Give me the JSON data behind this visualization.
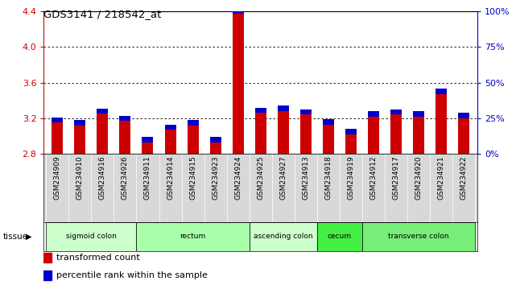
{
  "title": "GDS3141 / 218542_at",
  "samples": [
    "GSM234909",
    "GSM234910",
    "GSM234916",
    "GSM234926",
    "GSM234911",
    "GSM234914",
    "GSM234915",
    "GSM234923",
    "GSM234924",
    "GSM234925",
    "GSM234927",
    "GSM234913",
    "GSM234918",
    "GSM234919",
    "GSM234912",
    "GSM234917",
    "GSM234920",
    "GSM234921",
    "GSM234922"
  ],
  "red_values": [
    3.15,
    3.12,
    3.25,
    3.17,
    2.93,
    3.07,
    3.12,
    2.93,
    4.37,
    3.26,
    3.28,
    3.24,
    3.13,
    3.02,
    3.22,
    3.24,
    3.22,
    3.47,
    3.2
  ],
  "blue_fractions": [
    0.2,
    0.13,
    0.27,
    0.18,
    0.1,
    0.15,
    0.18,
    0.08,
    0.75,
    0.2,
    0.22,
    0.2,
    0.15,
    0.1,
    0.18,
    0.25,
    0.15,
    0.22,
    0.18
  ],
  "ymin": 2.8,
  "ymax": 4.4,
  "yticks_left": [
    2.8,
    3.2,
    3.6,
    4.0,
    4.4
  ],
  "yticks_right_pos": [
    2.8,
    3.2,
    3.6,
    4.0,
    4.4
  ],
  "right_ylabels": [
    "0%",
    "25%",
    "50%",
    "75%",
    "100%"
  ],
  "grid_values": [
    3.2,
    3.6,
    4.0
  ],
  "tissue_groups": [
    {
      "label": "sigmoid colon",
      "start": 0,
      "end": 4,
      "color": "#ccffcc"
    },
    {
      "label": "rectum",
      "start": 4,
      "end": 9,
      "color": "#aaffaa"
    },
    {
      "label": "ascending colon",
      "start": 9,
      "end": 12,
      "color": "#ccffcc"
    },
    {
      "label": "cecum",
      "start": 12,
      "end": 14,
      "color": "#44ee44"
    },
    {
      "label": "transverse colon",
      "start": 14,
      "end": 19,
      "color": "#77ee77"
    }
  ],
  "red_color": "#cc0000",
  "blue_color": "#0000cc",
  "bar_width": 0.5,
  "bg_color": "#d8d8d8",
  "white": "#ffffff",
  "plot_bg": "#ffffff"
}
